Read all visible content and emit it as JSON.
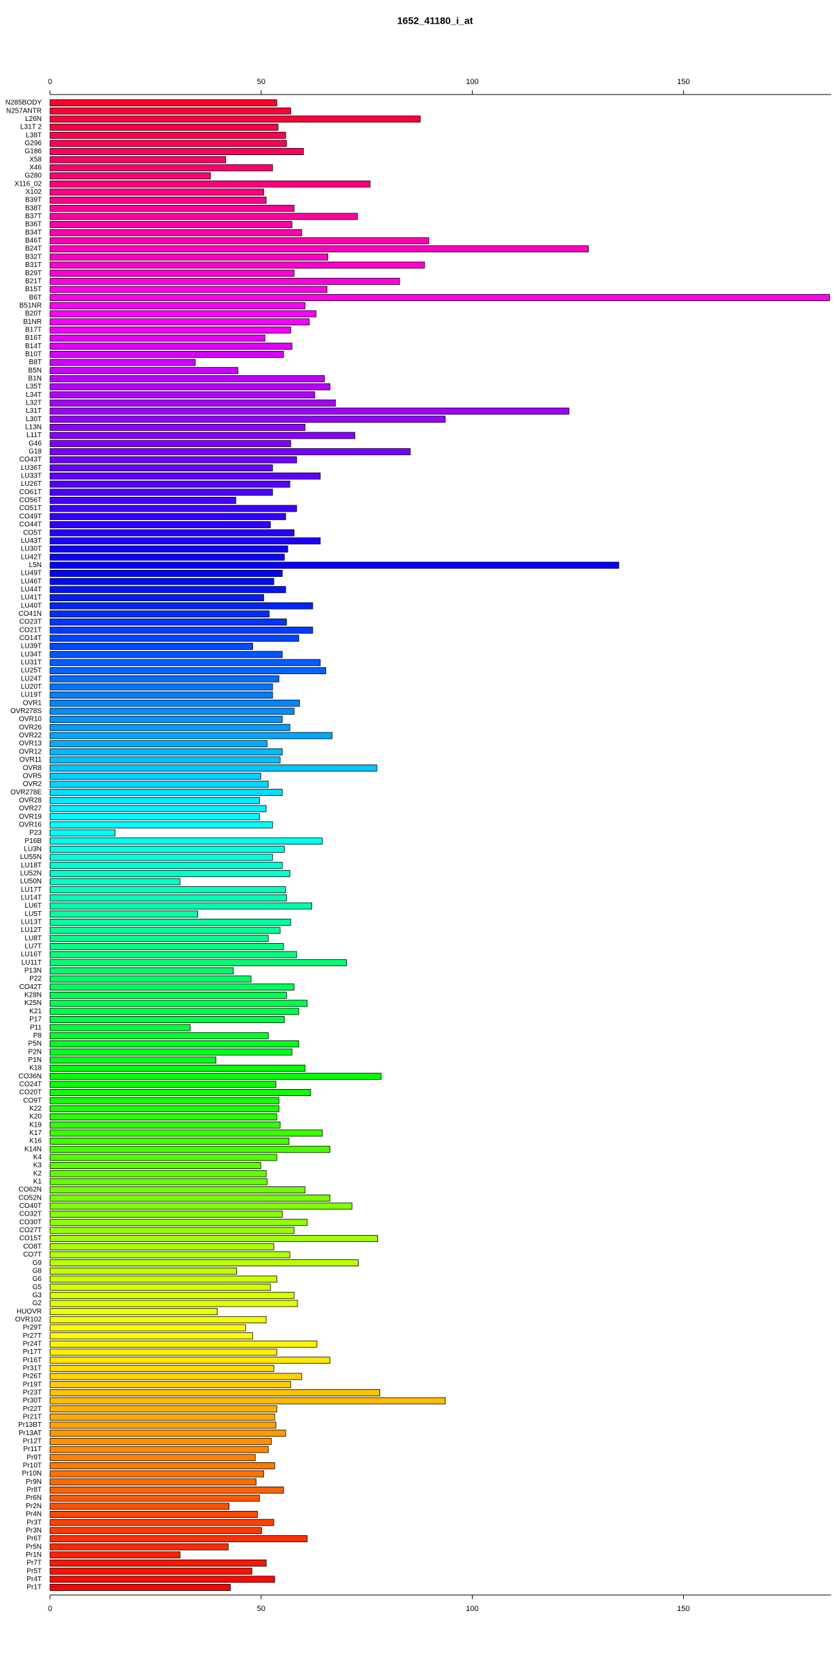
{
  "chart_data": {
    "type": "hbar",
    "title": "1652_41180_i_at",
    "categories": [
      "N285BODY",
      "N257ANTR",
      "L26N",
      "L31T 2",
      "L38T",
      "G296",
      "G186",
      "X58",
      "X46",
      "G280",
      "X116_02",
      "X102",
      "B39T",
      "B38T",
      "B37T",
      "B36T",
      "B34T",
      "B46T",
      "B24T",
      "B32T",
      "B31T",
      "B29T",
      "B21T",
      "B15T",
      "B6T",
      "B51NR",
      "B20T",
      "B1NR",
      "B17T",
      "B16T",
      "B14T",
      "B10T",
      "B8T",
      "B5N",
      "B1N",
      "L35T",
      "L34T",
      "L32T",
      "L31T",
      "L30T",
      "L13N",
      "L11T",
      "G46",
      "G18",
      "CO43T",
      "LU36T",
      "LU33T",
      "LU26T",
      "CO61T",
      "CO56T",
      "CO51T",
      "CO49T",
      "CO44T",
      "CO5T",
      "LU43T",
      "LU30T",
      "LU42T",
      "L5N",
      "LU49T",
      "LU46T",
      "LU44T",
      "LU41T",
      "LU40T",
      "CO41N",
      "CO23T",
      "CO21T",
      "CO14T",
      "LU39T",
      "LU34T",
      "LU31T",
      "LU25T",
      "LU24T",
      "LU20T",
      "LU19T",
      "OVR1",
      "OVR278S",
      "OVR10",
      "OVR26",
      "OVR22",
      "OVR13",
      "OVR12",
      "OVR11",
      "OVR8",
      "OVR5",
      "OVR2",
      "OVR278E",
      "OVR28",
      "OVR27",
      "OVR19",
      "OVR16",
      "P23",
      "P16B",
      "LU3N",
      "LU55N",
      "LU18T",
      "LU52N",
      "LU50N",
      "LU17T",
      "LU14T",
      "LU6T",
      "LU5T",
      "LU13T",
      "LU12T",
      "LU8T",
      "LU7T",
      "LU16T",
      "LU11T",
      "P13N",
      "P22",
      "CO42T",
      "K28N",
      "K25N",
      "K21",
      "P17",
      "P11",
      "P8",
      "P5N",
      "P2N",
      "P1N",
      "K18",
      "CO36N",
      "CO24T",
      "CO20T",
      "CO9T",
      "K22",
      "K20",
      "K19",
      "K17",
      "K16",
      "K14N",
      "K4",
      "K3",
      "K2",
      "K1",
      "CO62N",
      "CO52N",
      "CO40T",
      "CO32T",
      "CO30T",
      "CO27T",
      "CO15T",
      "CO8T",
      "CO7T",
      "G9",
      "G8",
      "G6",
      "G5",
      "G3",
      "G2",
      "HUOVR",
      "OVR102",
      "Pr29T",
      "Pr27T",
      "Pr24T",
      "Pr17T",
      "Pr16T",
      "Pr31T",
      "Pr26T",
      "Pr19T",
      "Pr23T",
      "Pr30T",
      "Pr22T",
      "Pr21T",
      "Pr13BT",
      "Pr13AT",
      "Pr12T",
      "Pr11T",
      "Pr9T",
      "Pr10T",
      "Pr10N",
      "Pr9N",
      "Pr8T",
      "Pr6N",
      "Pr2N",
      "Pr4N",
      "Pr3T",
      "Pr3N",
      "Pr6T",
      "Pr5N",
      "Pr1N",
      "Pr7T",
      "Pr5T",
      "Pr4T",
      "Pr1T"
    ],
    "values": [
      53.7,
      57,
      87.7,
      54,
      55.8,
      56,
      60,
      41.6,
      52.7,
      38,
      75.8,
      50.6,
      51.2,
      57.8,
      72.8,
      57.3,
      59.6,
      89.7,
      127.5,
      65.8,
      88.7,
      57.8,
      82.8,
      65.6,
      184.6,
      60.4,
      63,
      61.4,
      57,
      50.9,
      57.3,
      55.3,
      34.4,
      44.5,
      65,
      66.3,
      62.7,
      67.6,
      122.9,
      93.6,
      60.4,
      72.2,
      57,
      85.3,
      58.4,
      52.7,
      64,
      56.8,
      52.7,
      44,
      58.4,
      55.8,
      52.2,
      57.8,
      64,
      56.3,
      55.5,
      134.7,
      55,
      53,
      55.8,
      50.6,
      62.2,
      51.9,
      56,
      62.2,
      58.9,
      48,
      55,
      64,
      65.3,
      54.2,
      52.7,
      52.7,
      59.1,
      57.8,
      55,
      56.8,
      66.8,
      51.4,
      55,
      54.5,
      77.4,
      49.9,
      51.7,
      55,
      49.6,
      51.2,
      49.6,
      52.7,
      15.4,
      64.5,
      55.5,
      52.7,
      55,
      56.8,
      30.8,
      55.8,
      56,
      62,
      35,
      57,
      54.5,
      51.7,
      55.3,
      58.4,
      70.2,
      43.4,
      47.6,
      57.8,
      56,
      60.9,
      58.9,
      55.5,
      33.2,
      51.7,
      58.9,
      57.3,
      39.3,
      60.4,
      78.4,
      53.5,
      61.7,
      54.2,
      54.2,
      53.7,
      54.5,
      64.5,
      56.6,
      66.3,
      53.7,
      49.9,
      51.2,
      51.4,
      60.4,
      66.3,
      71.5,
      55,
      60.9,
      57.8,
      77.6,
      53,
      56.8,
      73,
      44.2,
      53.7,
      52.2,
      57.8,
      58.6,
      39.6,
      51.2,
      46.3,
      48,
      63.2,
      53.7,
      66.3,
      53,
      59.6,
      57,
      78.1,
      93.6,
      53.7,
      53.2,
      53.5,
      55.8,
      52.4,
      51.7,
      48.6,
      53.2,
      50.6,
      48.8,
      55.3,
      49.6,
      42.4,
      49.1,
      53,
      50.1,
      60.9,
      42.2,
      30.8,
      51.2,
      47.8,
      53.2,
      42.7
    ],
    "color_map": "rainbow",
    "xlim": [
      0,
      185
    ],
    "xticks": [
      0,
      50,
      100,
      150
    ]
  }
}
